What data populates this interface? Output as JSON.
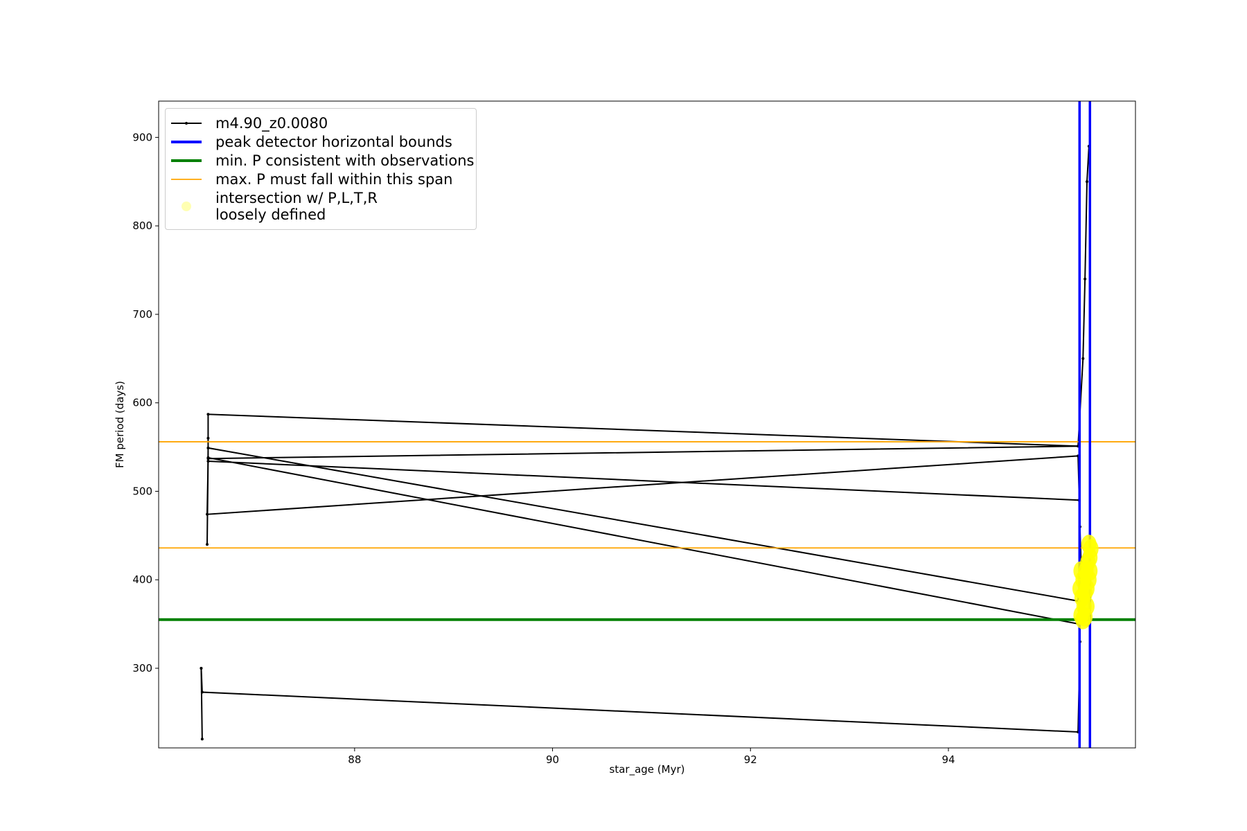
{
  "chart_data": {
    "type": "line",
    "xlabel": "star_age (Myr)",
    "ylabel": "FM period (days)",
    "xlim": [
      86.02,
      95.89
    ],
    "ylim": [
      210,
      941
    ],
    "xticks": [
      88,
      90,
      92,
      94
    ],
    "yticks": [
      300,
      400,
      500,
      600,
      700,
      800,
      900
    ],
    "series": [
      {
        "name": "m4.90_z0.0080",
        "color": "#000000",
        "x": [
          86.45,
          86.46,
          86.45,
          86.46,
          95.31,
          95.33,
          95.32,
          86.52,
          86.51,
          86.52,
          95.31,
          95.34,
          95.32,
          86.52,
          86.51,
          95.31,
          95.33,
          95.32,
          86.52,
          86.52,
          86.52,
          95.31,
          95.36,
          95.38,
          95.4,
          95.42
        ],
        "values": [
          300,
          220,
          300,
          273,
          228,
          330,
          350,
          538,
          440,
          549,
          376,
          420,
          490,
          534,
          474,
          540,
          460,
          551,
          537,
          560,
          587,
          551,
          650,
          740,
          850,
          890
        ]
      }
    ],
    "vlines": {
      "name": "peak detector horizontal bounds",
      "color": "#0000ff",
      "x": [
        95.325,
        95.43
      ]
    },
    "min_line": {
      "name": "min. P consistent with observations",
      "color": "#008000",
      "value": 355
    },
    "max_span": {
      "name": "max. P must fall within this span",
      "color": "#ffa500",
      "values": [
        556,
        436
      ]
    },
    "scatter": {
      "name": "intersection w/ P,L,T,R\nloosely defined",
      "color": "#ffff00",
      "x": [
        95.34,
        95.36,
        95.38,
        95.35,
        95.38,
        95.4,
        95.42,
        95.36,
        95.39,
        95.41,
        95.43,
        95.44,
        95.42,
        95.37,
        95.4,
        95.33,
        95.34,
        95.43
      ],
      "values": [
        360,
        355,
        358,
        380,
        385,
        390,
        400,
        400,
        410,
        420,
        425,
        435,
        440,
        370,
        370,
        390,
        410,
        410
      ]
    }
  }
}
